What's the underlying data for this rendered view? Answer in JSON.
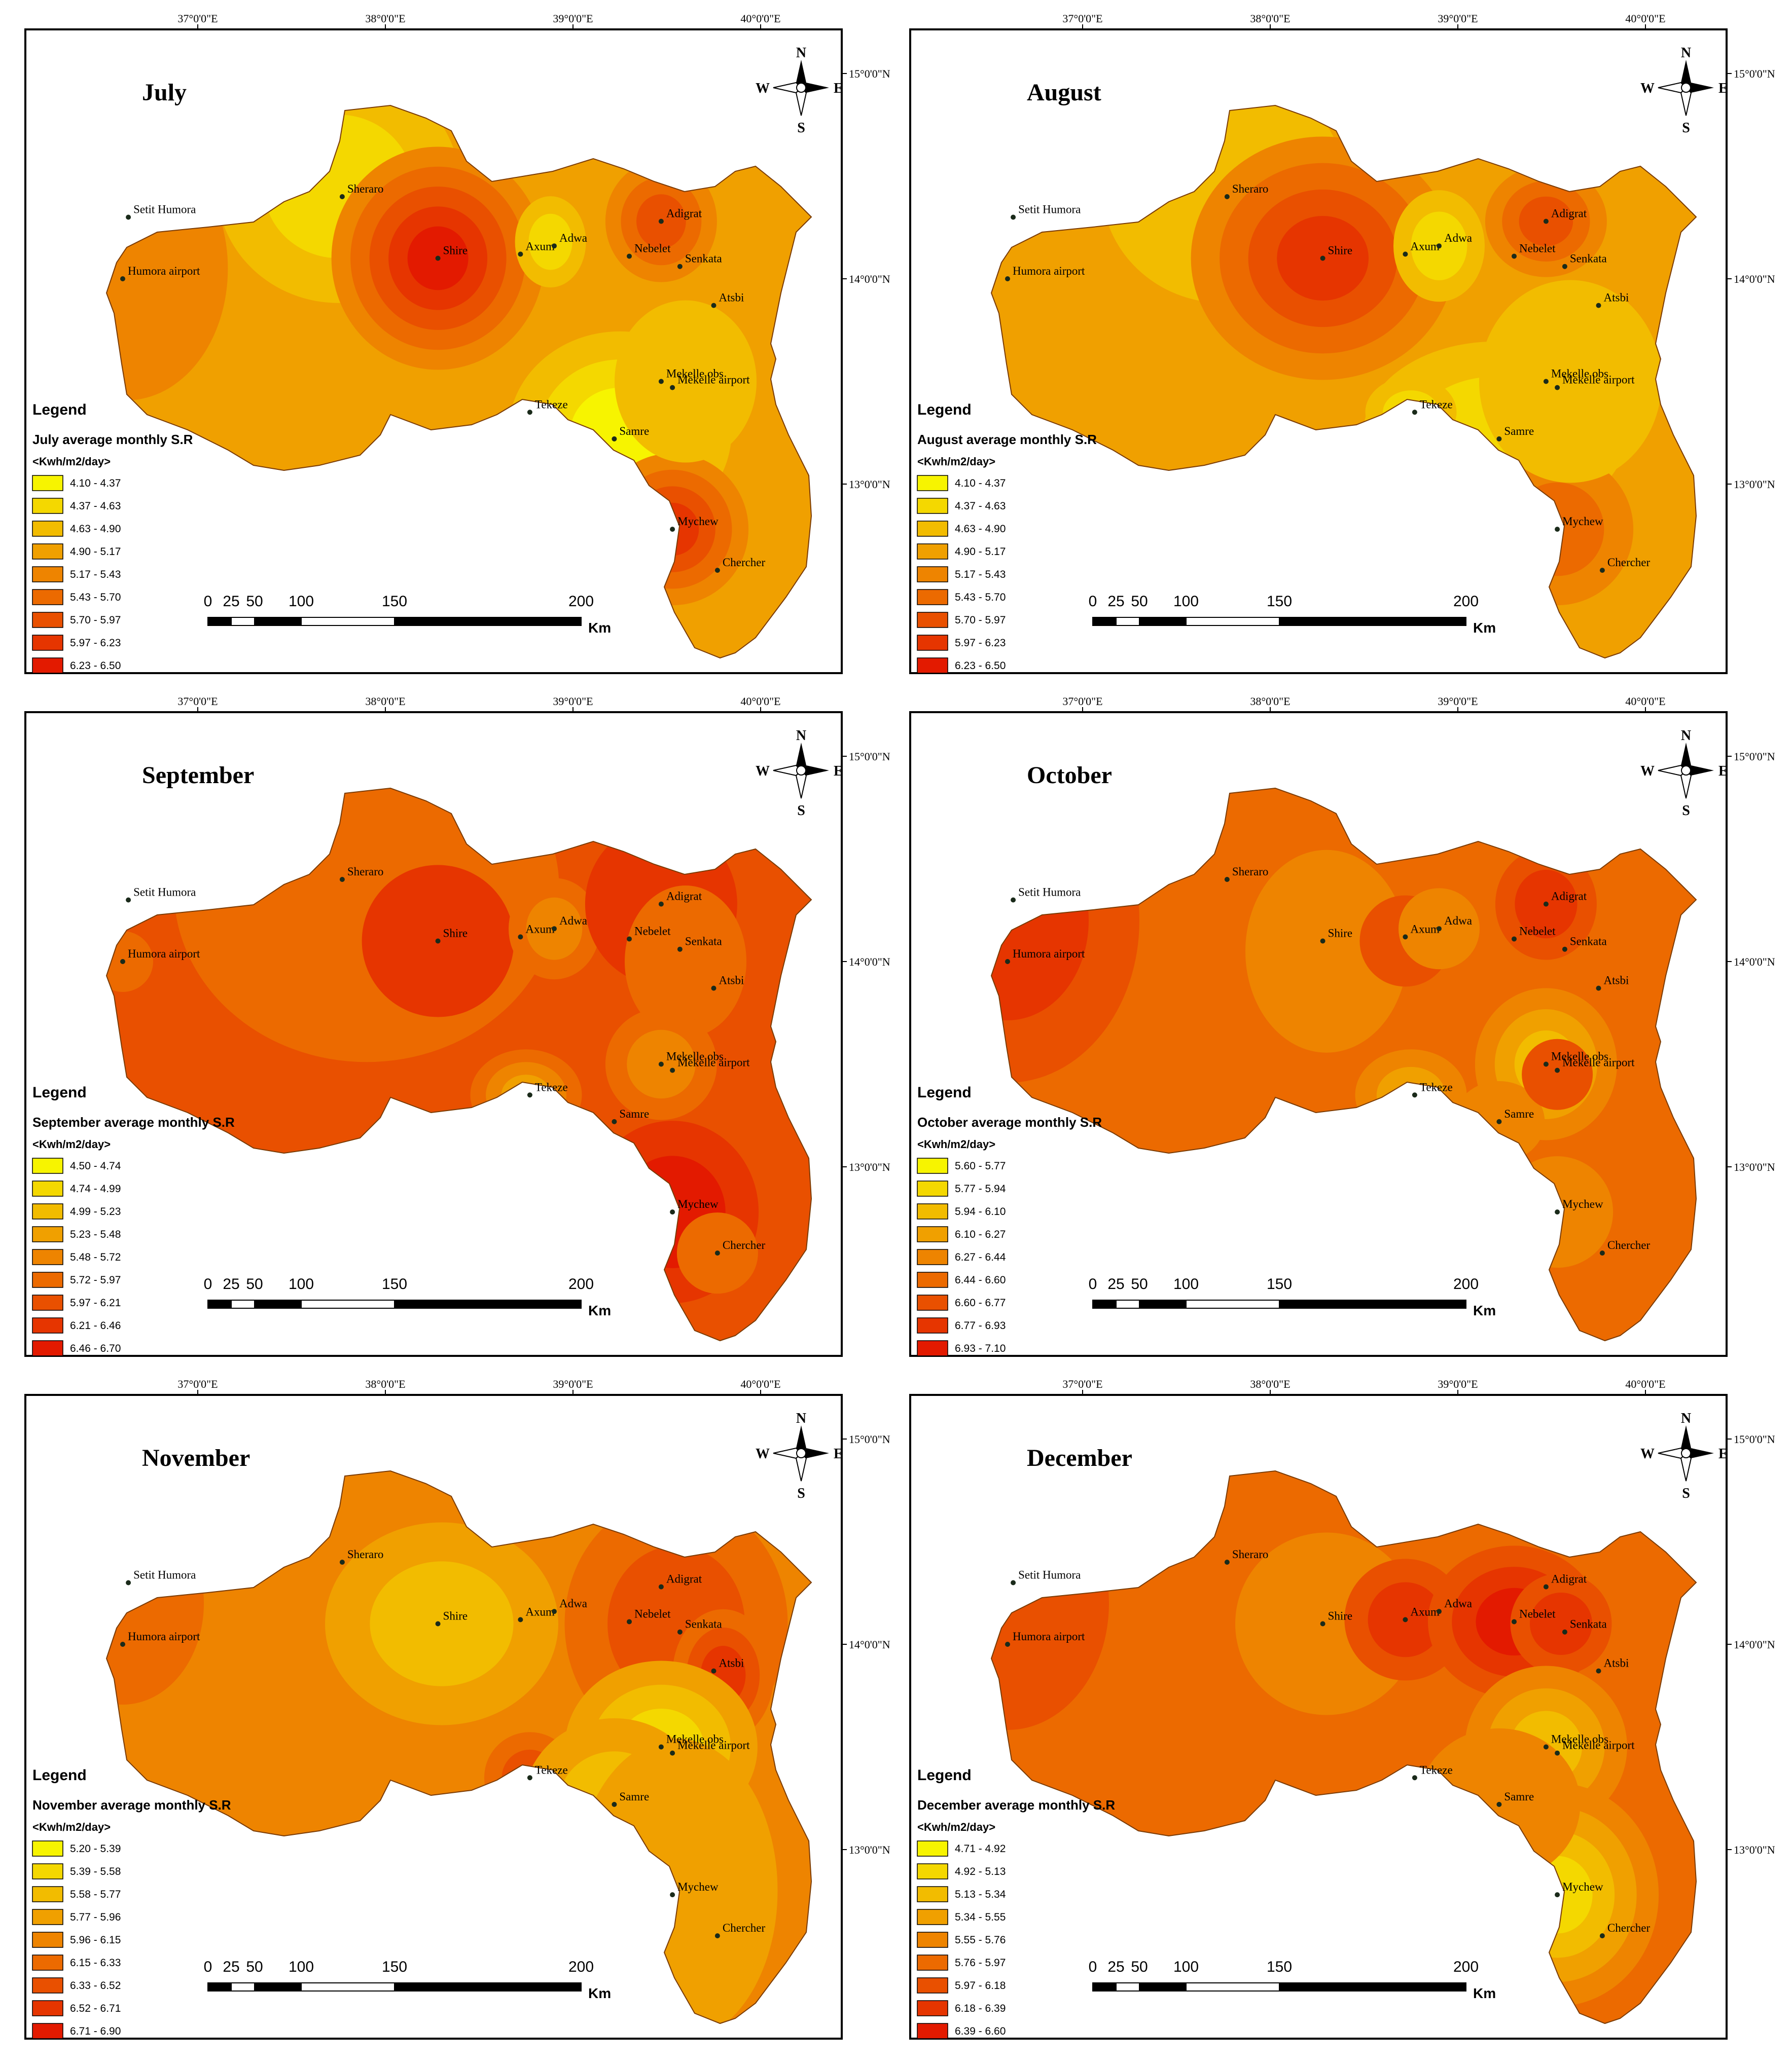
{
  "figure": {
    "lon_labels": [
      "37°0'0\"E",
      "38°0'0\"E",
      "39°0'0\"E",
      "40°0'0\"E"
    ],
    "lat_labels": [
      "15°0'0\"N",
      "14°0'0\"N",
      "13°0'0\"N"
    ],
    "compass": {
      "n": "N",
      "s": "S",
      "e": "E",
      "w": "W"
    },
    "scale_bar": {
      "ticks": [
        "0",
        "25",
        "50",
        "100",
        "150",
        "200"
      ],
      "unit": "Km"
    },
    "legend_heading": "Legend",
    "legend_unit": "<Kwh/m2/day>",
    "class_colors": [
      "#f7f400",
      "#f4d800",
      "#f2bc00",
      "#f0a000",
      "#ee8400",
      "#ec6a00",
      "#e95000",
      "#e63500",
      "#e31a00"
    ]
  },
  "stations": [
    {
      "name": "Setit Humora",
      "lon": 36.63,
      "lat": 14.3
    },
    {
      "name": "Humora airport",
      "lon": 36.6,
      "lat": 14.0
    },
    {
      "name": "Sheraro",
      "lon": 37.77,
      "lat": 14.4
    },
    {
      "name": "Shire",
      "lon": 38.28,
      "lat": 14.1
    },
    {
      "name": "Axum",
      "lon": 38.72,
      "lat": 14.12
    },
    {
      "name": "Adwa",
      "lon": 38.9,
      "lat": 14.16
    },
    {
      "name": "Nebelet",
      "lon": 39.3,
      "lat": 14.11
    },
    {
      "name": "Adigrat",
      "lon": 39.47,
      "lat": 14.28
    },
    {
      "name": "Senkata",
      "lon": 39.57,
      "lat": 14.06
    },
    {
      "name": "Atsbi",
      "lon": 39.75,
      "lat": 13.87
    },
    {
      "name": "Mekelle obs",
      "lon": 39.47,
      "lat": 13.5
    },
    {
      "name": "Mekelle airport",
      "lon": 39.53,
      "lat": 13.47
    },
    {
      "name": "Tekeze",
      "lon": 38.77,
      "lat": 13.35
    },
    {
      "name": "Samre",
      "lon": 39.22,
      "lat": 13.22
    },
    {
      "name": "Mychew",
      "lon": 39.53,
      "lat": 12.78
    },
    {
      "name": "Chercher",
      "lon": 39.77,
      "lat": 12.58
    }
  ],
  "panels": [
    {
      "month": "July",
      "legend_title": "July average monthly S.R",
      "classes": [
        "4.10 - 4.37",
        "4.37 - 4.63",
        "4.63 - 4.90",
        "4.90 - 5.17",
        "5.17 - 5.43",
        "5.43 - 5.70",
        "5.70 - 5.97",
        "5.97 - 6.23",
        "6.23 - 6.50"
      ]
    },
    {
      "month": "August",
      "legend_title": "August average monthly S.R",
      "classes": [
        "4.10 - 4.37",
        "4.37 - 4.63",
        "4.63 - 4.90",
        "4.90 - 5.17",
        "5.17 - 5.43",
        "5.43 - 5.70",
        "5.70 - 5.97",
        "5.97 - 6.23",
        "6.23 - 6.50"
      ]
    },
    {
      "month": "September",
      "legend_title": "September average monthly S.R",
      "classes": [
        "4.50 - 4.74",
        "4.74 - 4.99",
        "4.99 - 5.23",
        "5.23 - 5.48",
        "5.48 - 5.72",
        "5.72 - 5.97",
        "5.97 - 6.21",
        "6.21 - 6.46",
        "6.46 - 6.70"
      ]
    },
    {
      "month": "October",
      "legend_title": "October average monthly S.R",
      "classes": [
        "5.60 - 5.77",
        "5.77 - 5.94",
        "5.94 - 6.10",
        "6.10 - 6.27",
        "6.27 - 6.44",
        "6.44 - 6.60",
        "6.60 - 6.77",
        "6.77 - 6.93",
        "6.93 - 7.10"
      ]
    },
    {
      "month": "November",
      "legend_title": "November average monthly S.R",
      "classes": [
        "5.20 - 5.39",
        "5.39 - 5.58",
        "5.58 - 5.77",
        "5.77 - 5.96",
        "5.96 - 6.15",
        "6.15 - 6.33",
        "6.33 - 6.52",
        "6.52 - 6.71",
        "6.71 - 6.90"
      ]
    },
    {
      "month": "December",
      "legend_title": "December average monthly S.R",
      "classes": [
        "4.71 - 4.92",
        "4.92 - 5.13",
        "5.13 - 5.34",
        "5.34 - 5.55",
        "5.55 - 5.76",
        "5.76 - 5.97",
        "5.97 - 6.18",
        "6.18 - 6.39",
        "6.39 - 6.60"
      ]
    }
  ]
}
